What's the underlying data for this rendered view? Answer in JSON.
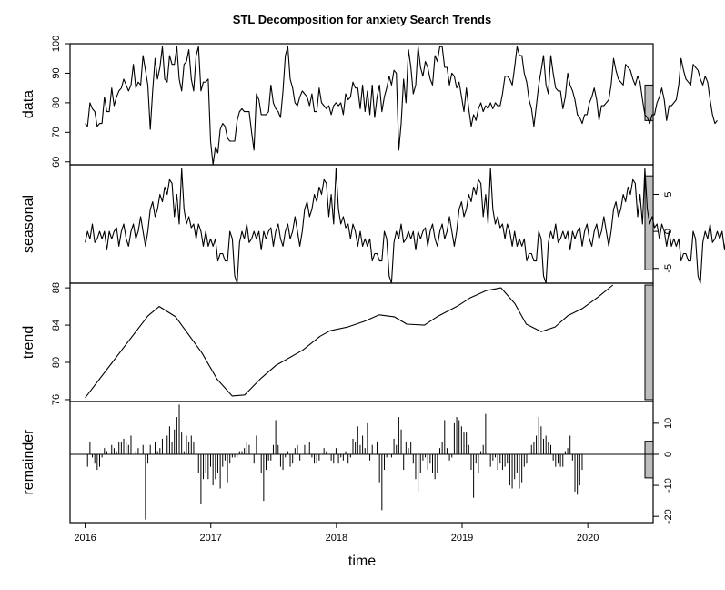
{
  "title": "STL Decomposition for anxiety Search Trends",
  "xlabel": "time",
  "chart_data": {
    "type": "line",
    "title": "STL Decomposition for anxiety Search Trends",
    "xlabel": "time",
    "x_start": 2016.0,
    "x_step": 0.0192,
    "xlim": [
      2015.88,
      2020.52
    ],
    "x_ticks": [
      2016,
      2017,
      2018,
      2019,
      2020
    ],
    "x_tick_labels": [
      "2016",
      "2017",
      "2018",
      "2019",
      "2020"
    ],
    "panels": [
      {
        "ylabel": "data",
        "style": "line",
        "ylim": [
          59,
          100
        ],
        "y_ticks": [
          60,
          70,
          80,
          90,
          100
        ],
        "y_tick_labels": [
          "60",
          "70",
          "80",
          "90",
          "100"
        ],
        "axis_side": "left",
        "range_bar": [
          74,
          86
        ],
        "values": [
          73,
          72,
          80,
          78,
          77,
          72,
          73,
          73,
          82,
          77,
          77,
          85,
          79,
          82,
          84,
          85,
          88,
          86,
          84,
          86,
          93,
          85,
          87,
          86,
          96,
          91,
          86,
          71,
          84,
          95,
          88,
          92,
          99,
          88,
          87,
          96,
          93,
          93,
          99,
          88,
          84,
          93,
          94,
          98,
          88,
          84,
          96,
          99,
          84,
          87,
          87,
          88,
          67,
          59,
          65,
          63,
          71,
          73,
          72,
          68,
          67,
          67,
          67,
          74,
          77,
          78,
          77,
          77,
          77,
          70,
          64,
          83,
          81,
          76,
          76,
          76,
          77,
          86,
          80,
          78,
          77,
          75,
          84,
          96,
          99,
          88,
          85,
          80,
          79,
          82,
          84,
          83,
          82,
          79,
          83,
          77,
          77,
          85,
          80,
          79,
          78,
          79,
          76,
          79,
          80,
          79,
          80,
          76,
          83,
          81,
          82,
          87,
          85,
          85,
          78,
          86,
          77,
          84,
          76,
          86,
          75,
          82,
          86,
          77,
          82,
          85,
          89,
          86,
          91,
          90,
          64,
          73,
          88,
          80,
          98,
          92,
          83,
          86,
          99,
          92,
          89,
          94,
          92,
          88,
          86,
          96,
          94,
          99,
          99,
          92,
          92,
          86,
          90,
          89,
          85,
          87,
          82,
          77,
          85,
          78,
          72,
          76,
          74,
          78,
          80,
          77,
          79,
          78,
          80,
          78,
          80,
          79,
          79,
          83,
          89,
          89,
          88,
          86,
          92,
          99,
          96,
          96,
          90,
          87,
          81,
          78,
          72,
          79,
          86,
          91,
          96,
          86,
          83,
          96,
          90,
          85,
          84,
          84,
          78,
          82,
          90,
          86,
          84,
          81,
          76,
          75,
          73,
          76,
          76,
          80,
          82,
          85,
          81,
          74,
          79,
          79,
          80,
          81,
          86,
          95,
          91,
          88,
          87,
          86,
          93,
          92,
          91,
          88,
          86,
          89,
          87,
          81,
          76,
          75,
          73,
          76,
          76,
          80,
          82,
          85,
          81,
          74,
          79,
          79,
          80,
          81,
          86,
          95,
          91,
          88,
          87,
          86,
          93,
          92,
          91,
          88,
          86,
          89,
          87,
          81,
          76,
          73,
          74
        ]
      },
      {
        "ylabel": "seasonal",
        "style": "line",
        "ylim": [
          -7,
          9
        ],
        "y_ticks": [
          -5,
          0,
          5
        ],
        "y_tick_labels": [
          "-5",
          "0",
          "5"
        ],
        "axis_side": "right",
        "range_bar": [
          -5.2,
          7.5
        ],
        "pattern": [
          -1.5,
          0,
          -1,
          1,
          -1.5,
          -1,
          0,
          -1,
          0,
          -2.5,
          0,
          -1,
          0,
          0.5,
          -2,
          0,
          1,
          -1,
          -2,
          0,
          1,
          -1,
          0,
          2,
          0,
          -2,
          0,
          3,
          4,
          2,
          3,
          5,
          4,
          6,
          5,
          7,
          6.5,
          2,
          5,
          1,
          8.5,
          3,
          1,
          2,
          0.5,
          1,
          -1,
          1,
          0,
          -2,
          0,
          -2,
          -1,
          -2,
          -1,
          -4,
          -3,
          -3,
          -4,
          -4,
          0,
          -1,
          -6,
          -7
        ],
        "values": [
          -1.5,
          0,
          -1,
          1,
          -1.5,
          -1,
          0,
          -1,
          0,
          -2.5,
          0,
          -1,
          0,
          0.5,
          -2,
          0,
          1,
          -1,
          -2,
          0,
          1,
          -1,
          0,
          2,
          0,
          -2,
          0,
          3,
          4,
          2,
          3,
          5,
          4,
          6,
          5,
          7,
          6.5,
          2,
          5,
          1,
          8.5,
          3,
          1,
          2,
          0.5,
          1,
          -1,
          1,
          0,
          -2,
          0,
          -2,
          -1,
          -2,
          -1,
          -4,
          -3,
          -3,
          -4,
          -4,
          0,
          -1,
          -6,
          -7,
          -1.5,
          0,
          -1,
          1,
          -1.5,
          -1,
          0,
          -1,
          0,
          -2.5,
          0,
          -1,
          0,
          0.5,
          -2,
          0,
          1,
          -1,
          -2,
          0,
          1,
          -1,
          0,
          2,
          0,
          -2,
          0,
          3,
          4,
          2,
          3,
          5,
          4,
          6,
          5,
          7,
          6.5,
          2,
          5,
          1,
          8.5,
          3,
          1,
          2,
          0.5,
          1,
          -1,
          1,
          0,
          -2,
          0,
          -2,
          -1,
          -2,
          -1,
          -4,
          -3,
          -3,
          -4,
          -4,
          0,
          -1,
          -6,
          -7,
          -1.5,
          0,
          -1,
          1,
          -1.5,
          -1,
          0,
          -1,
          0,
          -2.5,
          0,
          -1,
          0,
          0.5,
          -2,
          0,
          1,
          -1,
          -2,
          0,
          1,
          -1,
          0,
          2,
          0,
          -2,
          0,
          3,
          4,
          2,
          3,
          5,
          4,
          6,
          5,
          7,
          6.5,
          2,
          5,
          1,
          8.5,
          3,
          1,
          2,
          0.5,
          1,
          -1,
          1,
          0,
          -2,
          0,
          -2,
          -1,
          -2,
          -1,
          -4,
          -3,
          -3,
          -4,
          -4,
          0,
          -1,
          -6,
          -7,
          -1.5,
          0,
          -1,
          1,
          -1.5,
          -1,
          0,
          -1,
          0,
          -2.5,
          0,
          -1,
          0,
          0.5,
          -2,
          0,
          1,
          -1,
          -2,
          0,
          1,
          -1,
          0,
          2,
          0,
          -2,
          0,
          3,
          4,
          2,
          3,
          5,
          4,
          6,
          5,
          7,
          6.5,
          2,
          5,
          1,
          8.5,
          3,
          1,
          2,
          0.5,
          1,
          -1,
          1,
          0,
          -2,
          0,
          -2,
          -1,
          -2,
          -1,
          -4,
          -3,
          -3,
          -4,
          -4,
          0,
          -1,
          -6,
          -7,
          -1.5,
          0,
          -1,
          1,
          -1.5,
          -1,
          0,
          -1,
          0,
          -2.5,
          0,
          -1,
          0,
          0.5,
          -2,
          0,
          1,
          -1,
          -2,
          -1
        ]
      },
      {
        "ylabel": "trend",
        "style": "line",
        "ylim": [
          75.8,
          88.5
        ],
        "y_ticks": [
          76,
          80,
          84,
          88
        ],
        "y_tick_labels": [
          "76",
          "80",
          "84",
          "88"
        ],
        "axis_side": "left",
        "range_bar": [
          76,
          88.3
        ],
        "knots": [
          [
            2016.0,
            76.2
          ],
          [
            2016.5,
            85.0
          ],
          [
            2016.59,
            86.0
          ],
          [
            2016.72,
            84.9
          ],
          [
            2016.93,
            81.0
          ],
          [
            2017.05,
            78.2
          ],
          [
            2017.17,
            76.4
          ],
          [
            2017.27,
            76.5
          ],
          [
            2017.4,
            78.3
          ],
          [
            2017.52,
            79.7
          ],
          [
            2017.73,
            81.3
          ],
          [
            2017.87,
            82.8
          ],
          [
            2017.95,
            83.4
          ],
          [
            2018.09,
            83.8
          ],
          [
            2018.22,
            84.4
          ],
          [
            2018.34,
            85.1
          ],
          [
            2018.46,
            84.9
          ],
          [
            2018.56,
            84.1
          ],
          [
            2018.7,
            84.0
          ],
          [
            2018.8,
            84.9
          ],
          [
            2018.97,
            86.1
          ],
          [
            2019.06,
            86.9
          ],
          [
            2019.19,
            87.7
          ],
          [
            2019.31,
            88.0
          ],
          [
            2019.42,
            86.3
          ],
          [
            2019.51,
            84.1
          ],
          [
            2019.63,
            83.3
          ],
          [
            2019.74,
            83.8
          ],
          [
            2019.84,
            85.0
          ],
          [
            2019.96,
            85.8
          ],
          [
            2020.08,
            87.0
          ],
          [
            2020.2,
            88.3
          ]
        ]
      },
      {
        "ylabel": "remainder",
        "style": "bars",
        "ylim": [
          -22,
          17
        ],
        "y_ticks": [
          -20,
          -10,
          0,
          10
        ],
        "y_tick_labels": [
          "-20",
          "-10",
          "0",
          "10"
        ],
        "axis_side": "right",
        "range_bar": [
          -7.6,
          4.2
        ],
        "values": [
          0,
          -4,
          4,
          -1,
          -3,
          -5,
          -4,
          -1,
          2,
          1,
          0,
          3,
          2,
          1,
          4,
          4,
          5,
          4,
          3,
          6,
          0,
          1,
          2,
          0,
          3,
          -21,
          -3,
          3,
          0,
          4,
          1,
          2,
          5,
          0,
          6,
          9,
          4,
          8,
          12,
          16,
          7,
          1,
          6,
          4,
          6,
          4,
          0,
          -6,
          -16,
          -8,
          -6,
          -8,
          -4,
          -10,
          -8,
          -6,
          -11,
          -4,
          -2,
          -9,
          -3,
          -1,
          -1,
          -1,
          1,
          1,
          2,
          4,
          3,
          0,
          -3,
          6,
          0,
          -6,
          -15,
          -5,
          -2,
          -2,
          3,
          11,
          3,
          -4,
          -5,
          -1,
          1,
          -4,
          -3,
          2,
          3,
          -2,
          0,
          3,
          1,
          4,
          -1,
          -3,
          -3,
          -2,
          0,
          2,
          1,
          0,
          -2,
          -3,
          2,
          -3,
          -1,
          -2,
          1,
          -3,
          -1,
          5,
          4,
          9,
          3,
          6,
          2,
          10,
          -2,
          3,
          0,
          4,
          -9,
          -18,
          -5,
          -1,
          0,
          -1,
          5,
          3,
          12,
          8,
          -5,
          4,
          2,
          4,
          -3,
          -8,
          -12,
          -6,
          -2,
          -1,
          -5,
          -3,
          -6,
          -8,
          -6,
          2,
          4,
          11,
          2,
          -2,
          -1,
          10,
          12,
          11,
          9,
          7,
          7,
          3,
          -5,
          -14,
          -3,
          -6,
          1,
          3,
          13,
          1,
          -4,
          -2,
          -1,
          -5,
          -3,
          -5,
          -4,
          -3,
          -10,
          -11,
          -8,
          -6,
          -11,
          -9,
          -4,
          -3,
          1,
          3,
          4,
          6,
          12,
          9,
          5,
          6,
          4,
          3,
          -2,
          -4,
          -3,
          -4,
          -4,
          1,
          2,
          6,
          -2,
          -12,
          -13,
          -10,
          -5
        ]
      }
    ]
  }
}
